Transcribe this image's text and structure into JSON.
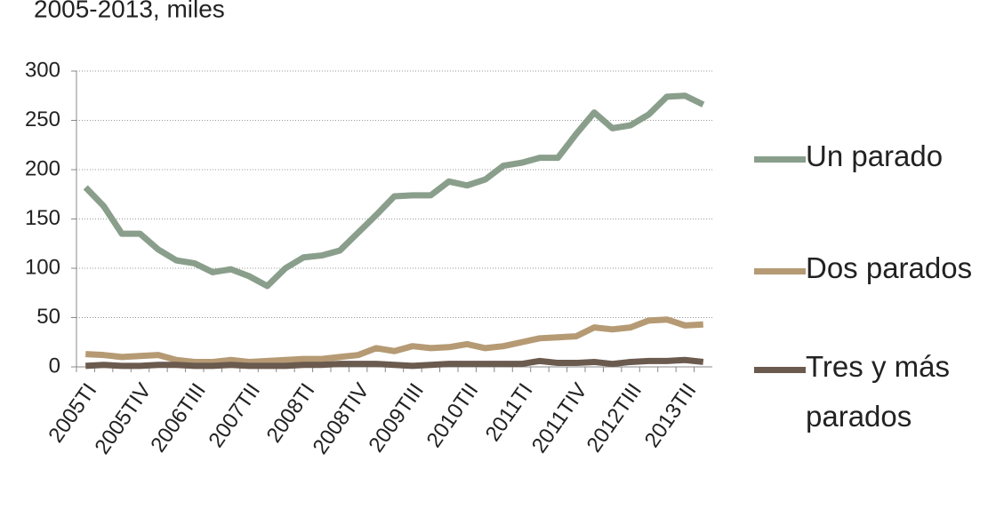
{
  "chart_data": {
    "type": "line",
    "title": "2005-2013, miles",
    "categories": [
      "2005TI",
      null,
      null,
      "2005TIV",
      null,
      null,
      "2006TIII",
      null,
      null,
      "2007TII",
      null,
      null,
      "2008TI",
      null,
      null,
      "2008TIV",
      null,
      null,
      "2009TIII",
      null,
      null,
      "2010TII",
      null,
      null,
      "2011TI",
      null,
      null,
      "2011TIV",
      null,
      null,
      "2012TIII",
      null,
      null,
      "2013TII",
      null
    ],
    "series": [
      {
        "name": "Un parado",
        "color": "#8a9e8c",
        "values": [
          182,
          163,
          135,
          135,
          119,
          108,
          105,
          96,
          99,
          92,
          82,
          100,
          111,
          113,
          118,
          136,
          154,
          173,
          174,
          174,
          188,
          184,
          190,
          204,
          207,
          212,
          212,
          236,
          258,
          242,
          245,
          256,
          274,
          275,
          266
        ]
      },
      {
        "name": "Dos parados",
        "color": "#b59a74",
        "values": [
          13,
          12,
          10,
          11,
          12,
          7,
          5,
          5,
          7,
          5,
          6,
          7,
          8,
          8,
          10,
          12,
          19,
          16,
          21,
          19,
          20,
          23,
          19,
          21,
          25,
          29,
          30,
          31,
          40,
          38,
          40,
          47,
          48,
          42,
          43
        ]
      },
      {
        "name": "Tres y más parados",
        "color": "#6b5a4e",
        "values": [
          1,
          2,
          1,
          1,
          2,
          2,
          1,
          1,
          2,
          1,
          1,
          1,
          2,
          2,
          3,
          3,
          3,
          2,
          1,
          2,
          3,
          3,
          3,
          3,
          3,
          6,
          4,
          4,
          5,
          3,
          5,
          6,
          6,
          7,
          5
        ]
      }
    ],
    "ylim": [
      0,
      300
    ],
    "yticks": [
      0,
      50,
      100,
      150,
      200,
      250,
      300
    ],
    "grid": true
  }
}
